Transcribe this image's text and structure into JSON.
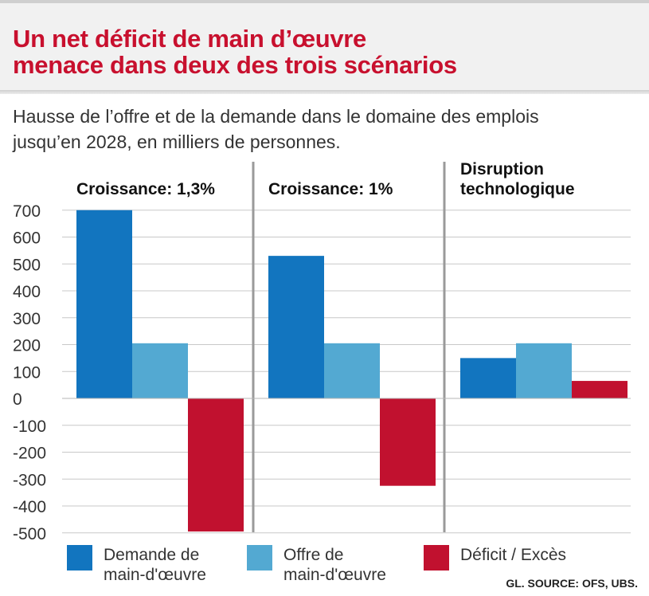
{
  "title": {
    "line1": "Un net déficit de main d’œuvre",
    "line2": "menace dans deux des trois scénarios"
  },
  "subtitle": {
    "line1": "Hausse de l’offre et de la demande dans le domaine des emplois",
    "line2": "jusqu’en 2028, en milliers de personnes."
  },
  "source": "GL. SOURCE: OFS, UBS.",
  "colors": {
    "title": "#c8102e",
    "demand": "#1275bf",
    "supply": "#53a9d2",
    "deficit": "#c1112f",
    "grid": "#c8c8c8",
    "separator": "#9a9a9a"
  },
  "chart_data": {
    "type": "bar",
    "title": "Un net déficit de main d’œuvre menace dans deux des trois scénarios",
    "ylabel": "milliers de personnes",
    "ylim": [
      -500,
      700
    ],
    "yticks": [
      700,
      600,
      500,
      400,
      300,
      200,
      100,
      0,
      -100,
      -200,
      -300,
      -400,
      -500
    ],
    "ytick_labels": [
      "700",
      "600",
      "500",
      "400",
      "300",
      "200",
      "100",
      "0",
      "-100",
      "-200",
      "-300",
      "-400",
      "-500"
    ],
    "categories": [
      {
        "lines": [
          "Croissance: 1,3%"
        ]
      },
      {
        "lines": [
          "Croissance: 1%"
        ]
      },
      {
        "lines": [
          "Disruption",
          "technologique"
        ]
      }
    ],
    "series": [
      {
        "name": "Demande de main-d'œuvre",
        "legend_lines": [
          "Demande de",
          "main-d'œuvre"
        ],
        "color_key": "demand",
        "values": [
          700,
          530,
          150
        ]
      },
      {
        "name": "Offre de main-d'œuvre",
        "legend_lines": [
          "Offre de",
          "main-d'œuvre"
        ],
        "color_key": "supply",
        "values": [
          205,
          205,
          205
        ]
      },
      {
        "name": "Déficit / Excès",
        "legend_lines": [
          "Déficit / Excès"
        ],
        "color_key": "deficit",
        "values": [
          -495,
          -325,
          65
        ]
      }
    ],
    "grid": true,
    "legend": "bottom"
  }
}
